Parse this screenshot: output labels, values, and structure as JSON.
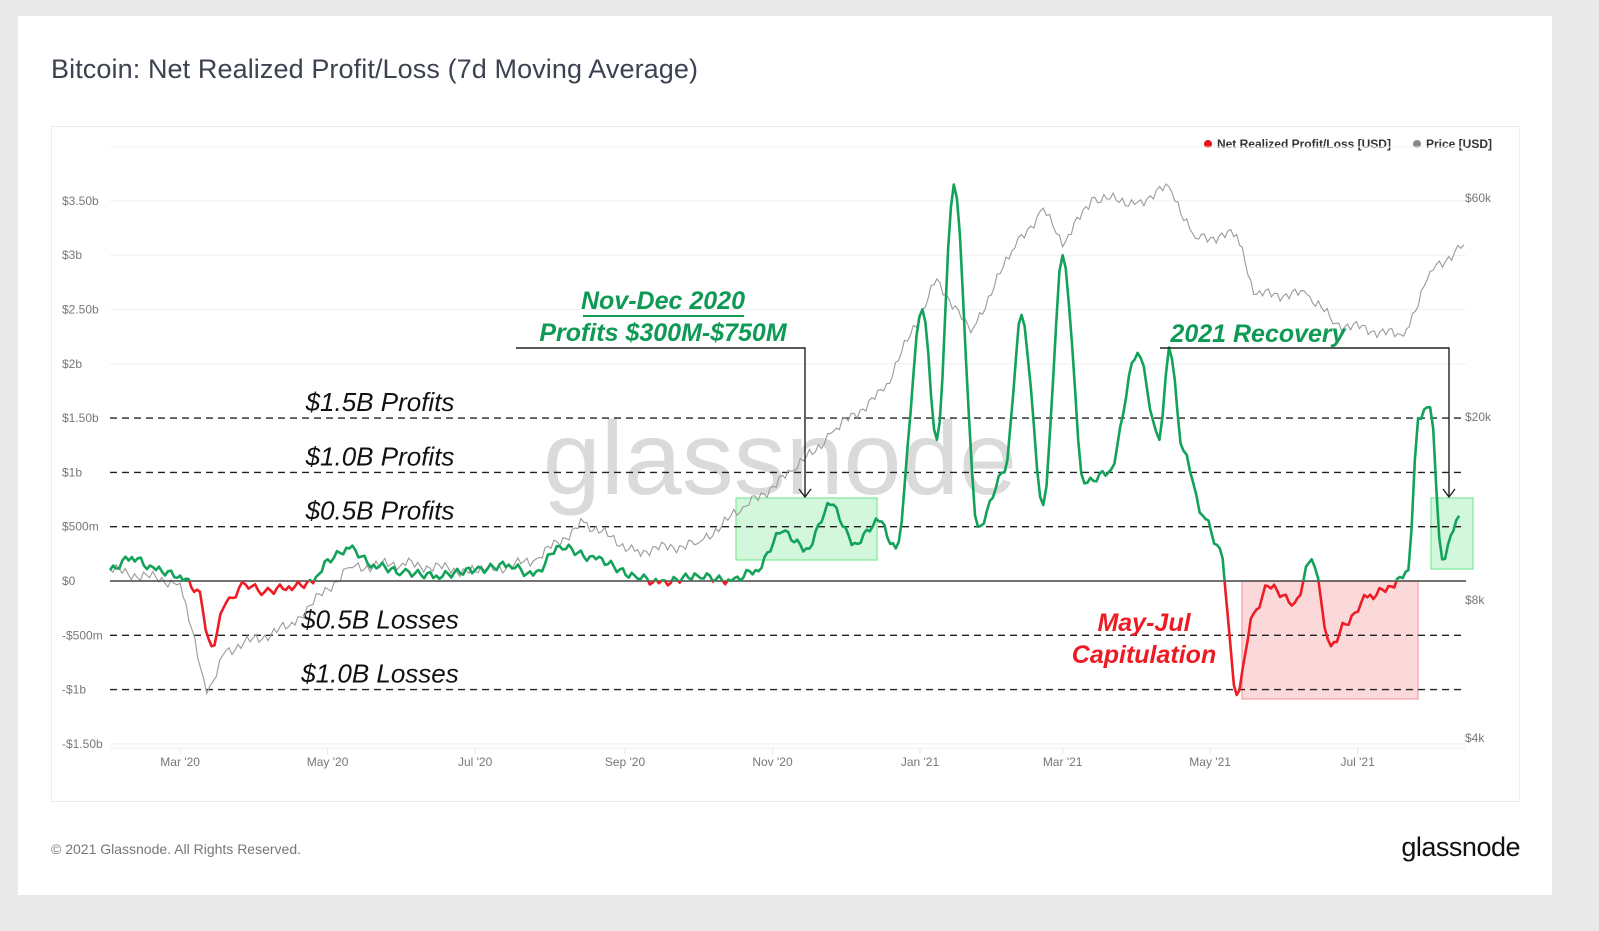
{
  "title": "Bitcoin: Net Realized Profit/Loss (7d Moving Average)",
  "footer": {
    "copyright": "© 2021 Glassnode. All Rights Reserved.",
    "logo": "glassnode"
  },
  "watermark": "glassnode",
  "legend": [
    {
      "label": "Net Realized Profit/Loss [USD]",
      "color": "#e8141a"
    },
    {
      "label": "Price [USD]",
      "color": "#888888"
    }
  ],
  "colors": {
    "profit": "#12a25a",
    "loss": "#ee1c25",
    "price": "#9a9a9a",
    "profit_box": "#7fe89a",
    "loss_box": "#f5a0a4",
    "annotation_green": "#0e9a55",
    "annotation_red": "#ef1b24"
  },
  "annotations": {
    "nov_dec_line1": "Nov-Dec 2020",
    "nov_dec_line2": "Profits $300M-$750M",
    "recovery": "2021  Recovery",
    "may_jul_line1": "May-Jul",
    "may_jul_line2": "Capitulation",
    "levels": [
      {
        "label": "$1.5B Profits",
        "value": 1.5
      },
      {
        "label": "$1.0B Profits",
        "value": 1.0
      },
      {
        "label": "$0.5B Profits",
        "value": 0.5
      },
      {
        "label": "$0.5B Losses",
        "value": -0.5
      },
      {
        "label": "$1.0B Losses",
        "value": -1.0
      }
    ]
  },
  "chart_data": {
    "type": "line",
    "title": "Bitcoin: Net Realized Profit/Loss (7d Moving Average)",
    "xlabel": "",
    "ylabel": "Net Realized Profit/Loss [USD]",
    "y2label": "Price [USD]",
    "x_ticks": [
      "Mar '20",
      "May '20",
      "Jul '20",
      "Sep '20",
      "Nov '20",
      "Jan '21",
      "Mar '21",
      "May '21",
      "Jul '21"
    ],
    "y_ticks": [
      "$3.50b",
      "$3b",
      "$2.50b",
      "$2b",
      "$1.50b",
      "$1b",
      "$500m",
      "$0",
      "-$500m",
      "-$1b",
      "-$1.50b"
    ],
    "y2_ticks": [
      "$60k",
      "$20k",
      "$8k",
      "$4k"
    ],
    "ylim": [
      -1.5,
      3.5
    ],
    "y2_scale": "log",
    "y2lim": [
      4000,
      60000
    ],
    "grid": true,
    "legend_position": "top-right",
    "series": [
      {
        "name": "Net Realized Profit/Loss [USD] (billions)",
        "x": [
          "2020-02-01",
          "2020-02-10",
          "2020-02-20",
          "2020-03-01",
          "2020-03-08",
          "2020-03-14",
          "2020-03-20",
          "2020-03-28",
          "2020-04-05",
          "2020-04-15",
          "2020-04-25",
          "2020-05-01",
          "2020-05-10",
          "2020-05-20",
          "2020-06-01",
          "2020-06-15",
          "2020-07-01",
          "2020-07-15",
          "2020-07-25",
          "2020-08-05",
          "2020-08-20",
          "2020-09-05",
          "2020-09-15",
          "2020-10-01",
          "2020-10-15",
          "2020-10-25",
          "2020-11-05",
          "2020-11-15",
          "2020-11-25",
          "2020-12-05",
          "2020-12-15",
          "2020-12-22",
          "2021-01-02",
          "2021-01-08",
          "2021-01-15",
          "2021-01-25",
          "2021-02-05",
          "2021-02-12",
          "2021-02-21",
          "2021-03-01",
          "2021-03-10",
          "2021-03-20",
          "2021-04-01",
          "2021-04-10",
          "2021-04-14",
          "2021-04-20",
          "2021-04-28",
          "2021-05-05",
          "2021-05-12",
          "2021-05-19",
          "2021-05-25",
          "2021-06-05",
          "2021-06-12",
          "2021-06-20",
          "2021-06-26",
          "2021-07-05",
          "2021-07-15",
          "2021-07-22",
          "2021-07-26",
          "2021-07-31",
          "2021-08-05",
          "2021-08-12"
        ],
        "values": [
          0.1,
          0.22,
          0.1,
          0.05,
          -0.08,
          -0.6,
          -0.2,
          -0.03,
          -0.1,
          -0.05,
          -0.02,
          0.2,
          0.3,
          0.15,
          0.08,
          0.05,
          0.1,
          0.15,
          0.05,
          0.32,
          0.2,
          0.05,
          -0.02,
          0.05,
          0.0,
          0.1,
          0.45,
          0.3,
          0.7,
          0.35,
          0.55,
          0.3,
          2.5,
          1.3,
          3.65,
          0.5,
          1.0,
          2.45,
          0.7,
          3.0,
          0.9,
          1.0,
          2.1,
          1.3,
          2.15,
          1.2,
          0.6,
          0.3,
          -1.05,
          -0.3,
          -0.05,
          -0.2,
          0.2,
          -0.6,
          -0.4,
          -0.15,
          -0.05,
          0.1,
          1.5,
          1.6,
          0.2,
          0.6
        ]
      },
      {
        "name": "Price [USD]",
        "x": [
          "2020-02-01",
          "2020-03-01",
          "2020-03-12",
          "2020-03-20",
          "2020-04-15",
          "2020-05-10",
          "2020-06-01",
          "2020-07-01",
          "2020-07-25",
          "2020-08-15",
          "2020-09-05",
          "2020-10-01",
          "2020-10-21",
          "2020-11-10",
          "2020-11-25",
          "2020-12-17",
          "2021-01-08",
          "2021-01-22",
          "2021-02-08",
          "2021-02-21",
          "2021-03-01",
          "2021-03-13",
          "2021-04-01",
          "2021-04-14",
          "2021-04-25",
          "2021-05-12",
          "2021-05-19",
          "2021-06-10",
          "2021-06-22",
          "2021-07-20",
          "2021-07-31",
          "2021-08-14"
        ],
        "values": [
          9300,
          8700,
          5000,
          6200,
          7000,
          9400,
          9600,
          9200,
          9700,
          11800,
          10200,
          10600,
          12800,
          15300,
          18400,
          22800,
          40000,
          30500,
          46000,
          57000,
          47000,
          60000,
          58800,
          63500,
          49000,
          50000,
          37000,
          37000,
          32000,
          30000,
          41500,
          47500
        ]
      }
    ]
  }
}
